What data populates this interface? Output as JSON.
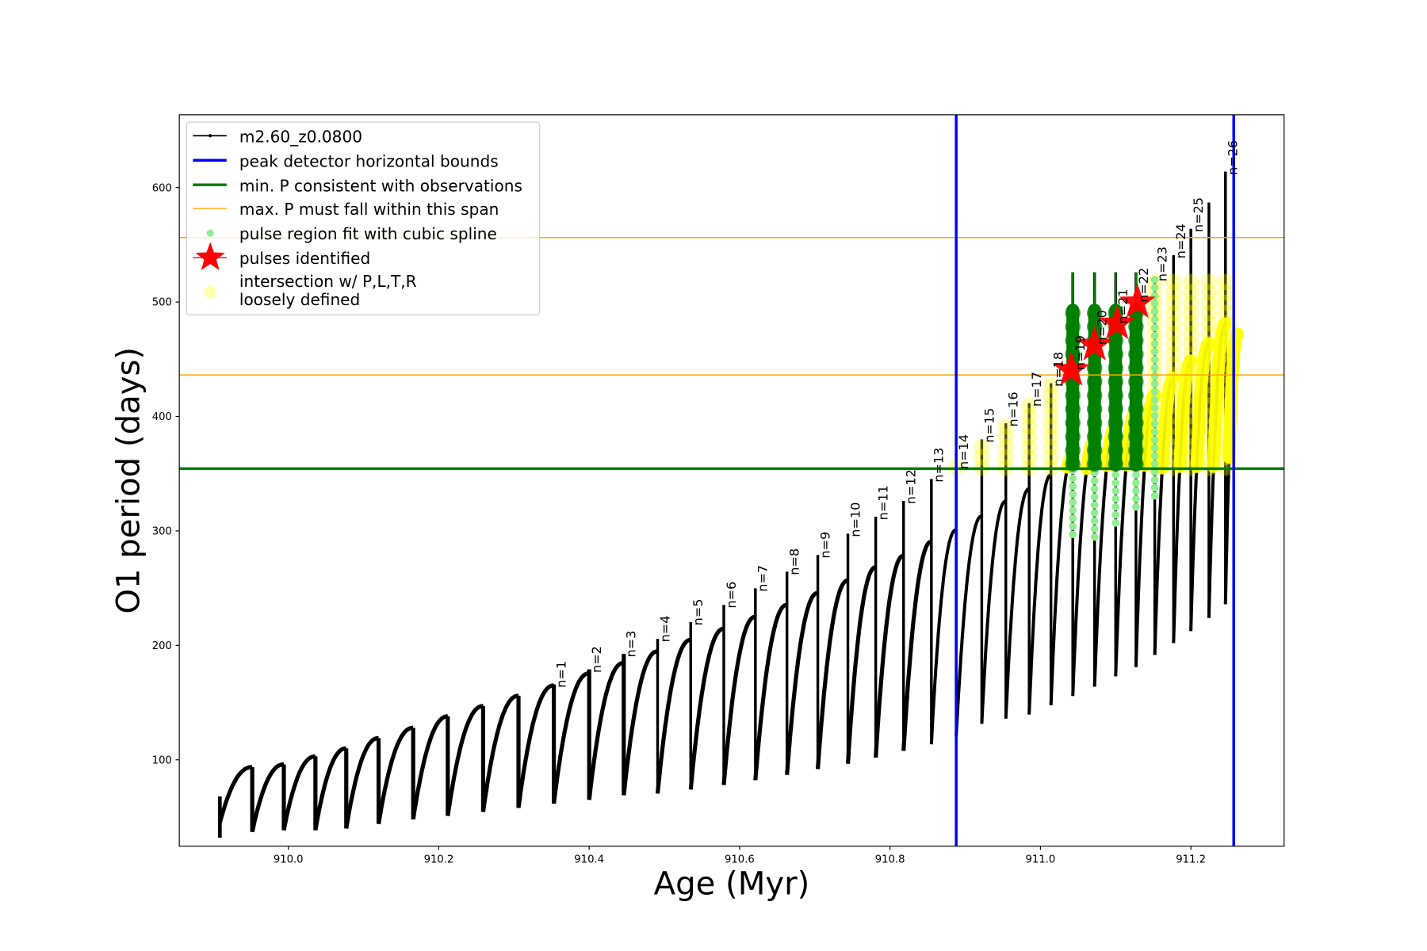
{
  "chart_data": {
    "type": "line",
    "title": "",
    "xlabel": "Age (Myr)",
    "ylabel": "O1 period (days)",
    "xlim": [
      909.855,
      911.324
    ],
    "ylim": [
      24.5,
      663.6
    ],
    "grid": false,
    "legend_position": "top-left",
    "xticks": [
      910.0,
      910.2,
      910.4,
      910.6,
      910.8,
      911.0,
      911.2
    ],
    "xtick_labels": [
      "910.0",
      "910.2",
      "910.4",
      "910.6",
      "910.8",
      "911.0",
      "911.2"
    ],
    "yticks": [
      100,
      200,
      300,
      400,
      500,
      600
    ],
    "ytick_labels": [
      "100",
      "200",
      "300",
      "400",
      "500",
      "600"
    ],
    "colors": {
      "track": "#000000",
      "bounds": "#0000ff",
      "min_p": "#008000",
      "max_p_span": "#ffa500",
      "spline": "#90ee90",
      "pulse": "#ff0000",
      "intersection": "#ffff00"
    },
    "track": {
      "name": "m2.60_z0.0800",
      "start_age": 909.909,
      "start_values": [
        68,
        32,
        45
      ],
      "cycles": [
        {
          "n": null,
          "age": 909.952,
          "peak": 93.7,
          "spike": 93.7,
          "min_after": 37
        },
        {
          "n": null,
          "age": 909.994,
          "peak": 96,
          "spike": 96,
          "min_after": 38.5
        },
        {
          "n": null,
          "age": 910.036,
          "peak": 103,
          "spike": 103,
          "min_after": 38.5
        },
        {
          "n": null,
          "age": 910.077,
          "peak": 110,
          "spike": 110,
          "min_after": 40
        },
        {
          "n": null,
          "age": 910.12,
          "peak": 119,
          "spike": 119,
          "min_after": 44
        },
        {
          "n": null,
          "age": 910.166,
          "peak": 128,
          "spike": 128,
          "min_after": 48
        },
        {
          "n": null,
          "age": 910.212,
          "peak": 138,
          "spike": 138,
          "min_after": 51
        },
        {
          "n": null,
          "age": 910.259,
          "peak": 147,
          "spike": 147,
          "min_after": 54.5
        },
        {
          "n": null,
          "age": 910.306,
          "peak": 156,
          "spike": 156,
          "min_after": 58
        },
        {
          "n": 1,
          "label": "n=1",
          "age": 910.353,
          "peak": 165,
          "spike": 166,
          "min_after": 61.7
        },
        {
          "n": 2,
          "label": "n=2",
          "age": 910.4,
          "peak": 175.6,
          "spike": 179,
          "min_after": 65
        },
        {
          "n": 3,
          "label": "n=3",
          "age": 910.446,
          "peak": 184.7,
          "spike": 192.5,
          "min_after": 69
        },
        {
          "n": 4,
          "label": "n=4",
          "age": 910.491,
          "peak": 194.8,
          "spike": 205.7,
          "min_after": 70.6
        },
        {
          "n": 5,
          "label": "n=5",
          "age": 910.535,
          "peak": 204.8,
          "spike": 220.3,
          "min_after": 74
        },
        {
          "n": 6,
          "label": "n=6",
          "age": 910.579,
          "peak": 214.5,
          "spike": 235.4,
          "min_after": 78
        },
        {
          "n": 7,
          "label": "n=7",
          "age": 910.621,
          "peak": 225,
          "spike": 249.8,
          "min_after": 82.2
        },
        {
          "n": 8,
          "label": "n=8",
          "age": 910.663,
          "peak": 235.4,
          "spike": 264.4,
          "min_after": 86.9
        },
        {
          "n": 9,
          "label": "n=9",
          "age": 910.704,
          "peak": 245.8,
          "spike": 279,
          "min_after": 92
        },
        {
          "n": 10,
          "label": "n=10",
          "age": 910.744,
          "peak": 256.7,
          "spike": 297.6,
          "min_after": 96.6
        },
        {
          "n": 11,
          "label": "n=11",
          "age": 910.781,
          "peak": 268.3,
          "spike": 312.4,
          "min_after": 102
        },
        {
          "n": 12,
          "label": "n=12",
          "age": 910.818,
          "peak": 278.3,
          "spike": 326.3,
          "min_after": 107.8
        },
        {
          "n": 13,
          "label": "n=13",
          "age": 910.855,
          "peak": 290.6,
          "spike": 345.4,
          "min_after": 113.6
        },
        {
          "n": 14,
          "label": "n=14",
          "age": 910.888,
          "peak": 301,
          "spike": 357,
          "min_after": 120.5
        },
        {
          "n": 15,
          "label": "n=15",
          "age": 910.922,
          "peak": 313,
          "spike": 380,
          "min_after": 131.5
        },
        {
          "n": 16,
          "label": "n=16",
          "age": 910.954,
          "peak": 326,
          "spike": 394,
          "min_after": 136
        },
        {
          "n": 17,
          "label": "n=17",
          "age": 910.985,
          "peak": 336.8,
          "spike": 411.6,
          "min_after": 139.6
        },
        {
          "n": 18,
          "label": "n=18",
          "age": 911.014,
          "peak": 349,
          "spike": 429,
          "min_after": 147.7
        },
        {
          "n": 19,
          "label": "n=19",
          "age": 911.043,
          "peak": 365,
          "spike": 526,
          "min_after": 155.8
        },
        {
          "n": 20,
          "label": "n=20",
          "age": 911.072,
          "peak": 378,
          "spike": 526,
          "min_after": 163.9
        },
        {
          "n": 21,
          "label": "n=21",
          "age": 911.1,
          "peak": 390.7,
          "spike": 526,
          "min_after": 173
        },
        {
          "n": 22,
          "label": "n=22",
          "age": 911.127,
          "peak": 403.5,
          "spike": 526,
          "min_after": 181
        },
        {
          "n": 23,
          "label": "n=23",
          "age": 911.152,
          "peak": 418.5,
          "spike": 521,
          "min_after": 191.7
        },
        {
          "n": 24,
          "label": "n=24",
          "age": 911.177,
          "peak": 433.6,
          "spike": 541,
          "min_after": 202
        },
        {
          "n": 25,
          "label": "n=25",
          "age": 911.2,
          "peak": 448.6,
          "spike": 564,
          "min_after": 212.5
        },
        {
          "n": null,
          "age": 911.224,
          "peak": 463.7,
          "spike": 587,
          "min_after": 224
        },
        {
          "n": 26,
          "label": "n=26",
          "age": 911.246,
          "peak": 481,
          "spike": 614,
          "min_after": 236
        }
      ],
      "end": {
        "age": 911.262,
        "value": 472
      }
    },
    "peak_detector_bounds": [
      910.888,
      911.257
    ],
    "min_period": 354.4,
    "max_period_span": [
      436.3,
      556.3
    ],
    "spline_fit_regions": [
      {
        "n": 19,
        "from": 297,
        "to": 497
      },
      {
        "n": 20,
        "from": 294.7,
        "to": 497
      },
      {
        "n": 21,
        "from": 307,
        "to": 497
      },
      {
        "n": 22,
        "from": 321,
        "to": 497
      },
      {
        "n": 23,
        "from": 330.6,
        "to": 520
      }
    ],
    "pulses_identified": [
      {
        "n": 19,
        "age": 911.041,
        "period": 440.5
      },
      {
        "n": 20,
        "age": 911.072,
        "period": 462.5
      },
      {
        "n": 21,
        "age": 911.102,
        "period": 481
      },
      {
        "n": 22,
        "age": 911.129,
        "period": 499.5
      }
    ],
    "legend": [
      {
        "key": "track",
        "label": "m2.60_z0.0800"
      },
      {
        "key": "bounds",
        "label": "peak detector horizontal bounds"
      },
      {
        "key": "min_p",
        "label": "min. P consistent with observations"
      },
      {
        "key": "max_p_span",
        "label": "max. P must fall within this span"
      },
      {
        "key": "spline",
        "label": "pulse region fit with cubic spline"
      },
      {
        "key": "pulse",
        "label": "pulses identified"
      },
      {
        "key": "intersection",
        "label": "intersection w/ P,L,T,R",
        "label2": "loosely defined"
      }
    ]
  }
}
